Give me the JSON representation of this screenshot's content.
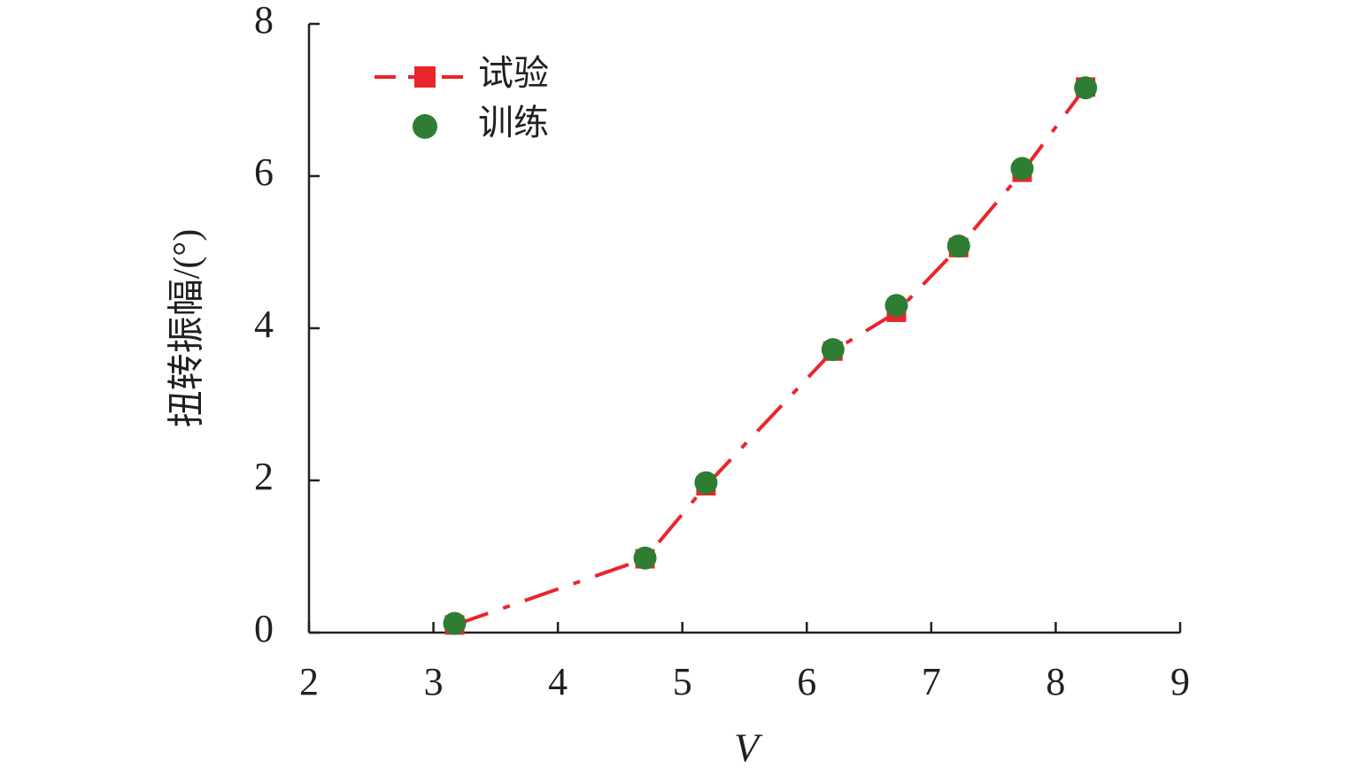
{
  "chart_data": {
    "type": "line",
    "x_label": "V",
    "y_label": "扭转振幅/(°)",
    "x": [
      3.17,
      4.7,
      5.19,
      6.21,
      6.72,
      7.22,
      7.73,
      8.24
    ],
    "series": [
      {
        "name": "试验",
        "color": "#e8262c",
        "marker": "square",
        "line_style": "dashdot",
        "values": [
          0.1,
          0.97,
          1.93,
          3.7,
          4.21,
          5.06,
          6.05,
          7.17
        ]
      },
      {
        "name": "训练",
        "color": "#2e7d32",
        "marker": "circle",
        "line_style": "none",
        "values": [
          0.12,
          0.98,
          1.97,
          3.72,
          4.3,
          5.08,
          6.1,
          7.16
        ]
      }
    ],
    "xlim": [
      2,
      9
    ],
    "xticks": [
      2,
      3,
      4,
      5,
      6,
      7,
      8,
      9
    ],
    "ylim": [
      0,
      8
    ],
    "yticks": [
      0,
      2,
      4,
      6,
      8
    ],
    "grid": false,
    "legend": "upper left"
  }
}
